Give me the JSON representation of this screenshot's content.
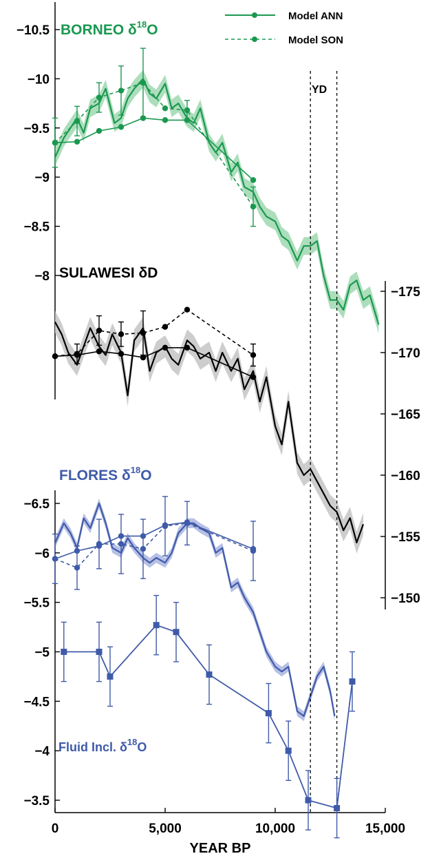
{
  "chart_data": {
    "type": "line",
    "xlabel": "YEAR BP",
    "xlim": [
      0,
      15000
    ],
    "xticks": [
      0,
      5000,
      10000,
      15000
    ],
    "xtick_labels": [
      "0",
      "5,000",
      "10,000",
      "15,000"
    ],
    "annotation_yd": "YD",
    "yd_lines": [
      11600,
      12800
    ],
    "legend": {
      "position": "top-right",
      "entries": [
        {
          "label": "Model ANN",
          "style": "solid"
        },
        {
          "label": "Model SON",
          "style": "dashed"
        }
      ]
    },
    "colors": {
      "borneo": "#1a9850",
      "borneo_band": "#9fd8b0",
      "sulawesi": "#000000",
      "sulawesi_band": "#c4c4c4",
      "flores": "#3f5aa8",
      "flores_band": "#aab5e0"
    },
    "panels": [
      {
        "id": "borneo",
        "title_main": "BORNEO δ",
        "title_sup": "18",
        "title_end": "O",
        "axis": "left",
        "ylim": [
          -10.7,
          -8.0
        ],
        "reversed": true,
        "yticks": [
          -10.5,
          -10,
          -9.5,
          -9,
          -8.5,
          -8
        ],
        "ytick_labels": [
          "−10.5",
          "−10",
          "−9.5",
          "−9",
          "−8.5",
          "−8"
        ],
        "record": {
          "name": "Borneo δ18O",
          "x": [
            0,
            400,
            700,
            1000,
            1300,
            1600,
            2000,
            2300,
            2700,
            3000,
            3300,
            3600,
            4000,
            4300,
            4600,
            5000,
            5300,
            5600,
            6000,
            6300,
            6600,
            7000,
            7300,
            7600,
            8000,
            8300,
            8600,
            9000,
            9300,
            9600,
            10000,
            10300,
            10600,
            11000,
            11300,
            11600,
            11900,
            12200,
            12500,
            12800,
            13100,
            13400,
            13700,
            14000,
            14300,
            14700
          ],
          "y": [
            -9.2,
            -9.4,
            -9.5,
            -9.6,
            -9.45,
            -9.7,
            -9.75,
            -9.9,
            -9.55,
            -9.6,
            -9.8,
            -9.9,
            -10.0,
            -9.85,
            -9.8,
            -9.95,
            -9.7,
            -9.75,
            -9.6,
            -9.55,
            -9.7,
            -9.35,
            -9.25,
            -9.35,
            -9.05,
            -9.15,
            -8.9,
            -8.85,
            -8.7,
            -8.6,
            -8.55,
            -8.4,
            -8.35,
            -8.15,
            -8.3,
            -8.3,
            -8.35,
            -8.0,
            -7.75,
            -7.75,
            -7.65,
            -7.9,
            -7.95,
            -7.75,
            -7.8,
            -7.5
          ],
          "band": 0.09
        },
        "model_ann": {
          "x": [
            0,
            1000,
            2000,
            3000,
            4000,
            5000,
            6000,
            9000
          ],
          "y": [
            -9.35,
            -9.36,
            -9.47,
            -9.51,
            -9.6,
            -9.58,
            -9.58,
            -8.97
          ],
          "err": [
            0,
            0,
            0,
            0,
            0,
            0,
            0,
            0
          ]
        },
        "model_son": {
          "x": [
            0,
            1000,
            2000,
            3000,
            4000,
            5000,
            6000,
            9000
          ],
          "y": [
            -9.35,
            -9.57,
            -9.81,
            -9.88,
            -9.96,
            -9.7,
            -9.68,
            -8.7
          ],
          "err": [
            0.25,
            0.15,
            0.15,
            0.25,
            0.35,
            0,
            0.1,
            0.2
          ]
        }
      },
      {
        "id": "sulawesi",
        "title_main": "SULAWESI δD",
        "title_sup": "",
        "title_end": "",
        "axis": "right",
        "ylim": [
          -176.5,
          -148.7
        ],
        "reversed": true,
        "yticks": [
          -175,
          -170,
          -165,
          -160,
          -155,
          -150
        ],
        "ytick_labels": [
          "−175",
          "−170",
          "−165",
          "−160",
          "−155",
          "−150"
        ],
        "record": {
          "name": "Sulawesi δD",
          "x": [
            0,
            300,
            600,
            1000,
            1300,
            1600,
            2000,
            2300,
            2600,
            3000,
            3300,
            3600,
            4000,
            4300,
            4600,
            5000,
            5300,
            5600,
            6000,
            6300,
            6600,
            7000,
            7300,
            7600,
            8000,
            8300,
            8600,
            9000,
            9300,
            9600,
            10000,
            10300,
            10600,
            11000,
            11300,
            11600,
            11900,
            12200,
            12500,
            12800,
            13100,
            13400,
            13700,
            14000
          ],
          "y": [
            -172.5,
            -171.5,
            -170.0,
            -169.0,
            -170.5,
            -172.0,
            -170.5,
            -169.8,
            -171.5,
            -170.0,
            -166.5,
            -171.0,
            -172.0,
            -168.5,
            -170.0,
            -170.5,
            -169.5,
            -169.0,
            -171.0,
            -170.5,
            -169.5,
            -170.0,
            -168.5,
            -170.0,
            -168.5,
            -169.5,
            -167.0,
            -168.5,
            -166.0,
            -168.0,
            -164.0,
            -162.5,
            -166.0,
            -161.0,
            -160.0,
            -160.5,
            -159.5,
            -158.5,
            -157.5,
            -157.0,
            -155.5,
            -156.5,
            -154.5,
            -156.0
          ],
          "band": 0.9
        },
        "model_ann": {
          "x": [
            0,
            1000,
            2000,
            3000,
            4000,
            5000,
            6000,
            9000
          ],
          "y": [
            -169.7,
            -169.8,
            -170.1,
            -169.9,
            -169.6,
            -170.4,
            -170.4,
            -168.0
          ],
          "err": [
            0,
            0,
            0,
            0,
            0,
            0,
            0,
            0
          ]
        },
        "model_son": {
          "x": [
            0,
            1000,
            2000,
            3000,
            4000,
            5000,
            6000,
            9000
          ],
          "y": [
            -169.7,
            -169.9,
            -171.8,
            -171.5,
            -171.6,
            -172.1,
            -173.5,
            -169.8
          ],
          "err": [
            0,
            0.8,
            1.2,
            1.0,
            1.8,
            0,
            0,
            0.9
          ]
        }
      },
      {
        "id": "flores",
        "title_main": "FLORES δ",
        "title_sup": "18",
        "title_end": "O",
        "axis": "left",
        "ylim": [
          -6.7,
          -3.32
        ],
        "reversed": true,
        "yticks": [
          -6.5,
          -6,
          -5.5,
          -5,
          -4.5,
          -4,
          -3.5
        ],
        "ytick_labels": [
          "−6.5",
          "−6",
          "−5.5",
          "−5",
          "−4.5",
          "−4",
          "−3.5"
        ],
        "record": {
          "name": "Flores δ18O",
          "x": [
            0,
            400,
            700,
            1000,
            1300,
            1600,
            2000,
            2300,
            2600,
            3000,
            3300,
            3600,
            4000,
            4300,
            4600,
            5000,
            5300,
            5600,
            6000,
            6300,
            6600,
            7000,
            7300,
            7600,
            8000,
            8300,
            8600,
            9000,
            9300,
            9600,
            10000,
            10300,
            10600,
            11000,
            11300,
            11600,
            11900,
            12200,
            12500,
            12700
          ],
          "y": [
            -6.1,
            -6.3,
            -6.2,
            -6.05,
            -6.35,
            -6.25,
            -6.5,
            -6.3,
            -6.05,
            -6.0,
            -6.15,
            -6.05,
            -5.95,
            -5.9,
            -5.95,
            -5.9,
            -6.0,
            -6.2,
            -6.3,
            -6.3,
            -6.25,
            -6.2,
            -6.0,
            -6.05,
            -5.65,
            -5.7,
            -5.55,
            -5.4,
            -5.2,
            -5.0,
            -4.85,
            -4.8,
            -4.85,
            -4.4,
            -4.35,
            -4.55,
            -4.75,
            -4.85,
            -4.6,
            -4.35
          ],
          "band": 0.05
        },
        "model_ann": {
          "x": [
            0,
            1000,
            2000,
            3000,
            4000,
            5000,
            6000,
            9000
          ],
          "y": [
            -5.94,
            -6.02,
            -6.07,
            -6.17,
            -6.17,
            -6.28,
            -6.31,
            -6.04
          ],
          "err": [
            0,
            0,
            0,
            0,
            0,
            0,
            0,
            0
          ]
        },
        "model_son": {
          "x": [
            0,
            1000,
            2000,
            3000,
            4000,
            5000,
            6000,
            9000
          ],
          "y": [
            -5.94,
            -5.85,
            -6.09,
            -6.09,
            -6.04,
            -6.27,
            -6.3,
            -6.02
          ],
          "err": [
            0.25,
            0.22,
            0.25,
            0.3,
            0.3,
            0.3,
            0.22,
            0.3
          ]
        }
      }
    ],
    "fluid_inclusion": {
      "label_main": "Fluid Incl. δ",
      "label_sup": "18",
      "label_end": "O",
      "x": [
        400,
        2000,
        2500,
        4600,
        5500,
        7000,
        9700,
        10600,
        11500,
        12800,
        13500
      ],
      "y": [
        -5.0,
        -5.0,
        -4.75,
        -5.27,
        -5.2,
        -4.77,
        -4.38,
        -4.0,
        -3.5,
        -3.42,
        -4.7
      ],
      "err": [
        0.3,
        0.3,
        0.3,
        0.3,
        0.3,
        0.3,
        0.3,
        0.3,
        0.3,
        0.3,
        0.3
      ]
    }
  }
}
